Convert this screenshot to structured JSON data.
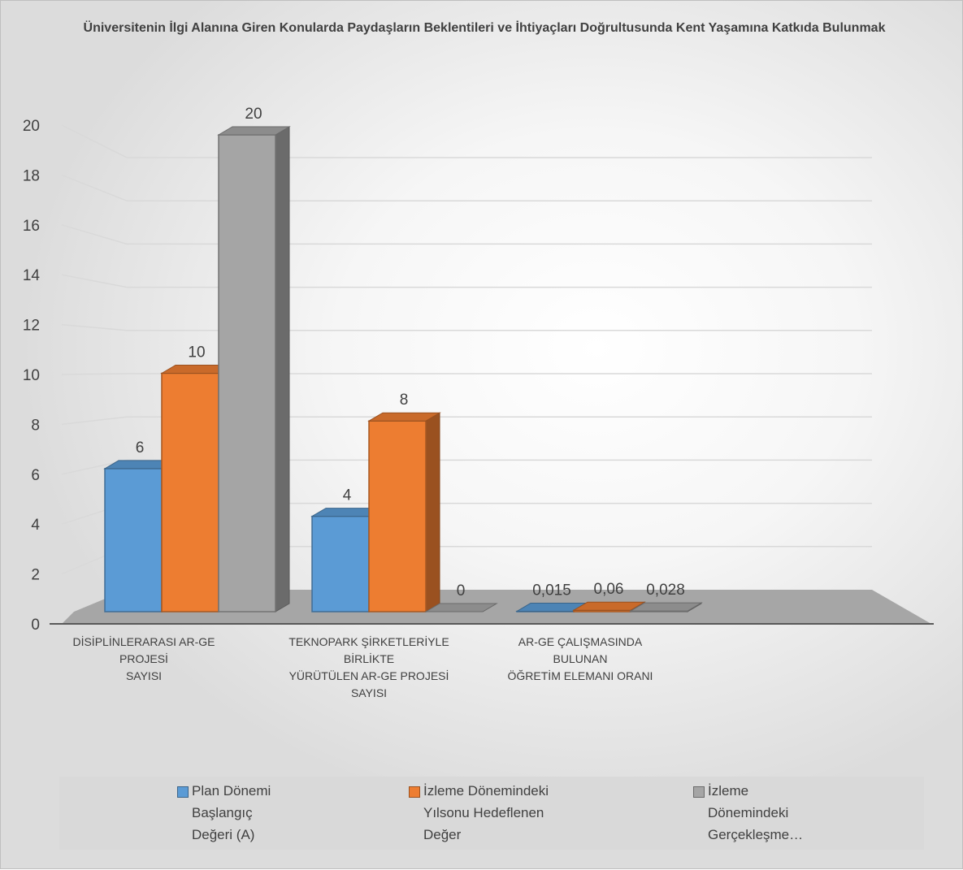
{
  "chart_data": {
    "type": "bar",
    "title": "Üniversitenin İlgi Alanına Giren Konularda Paydaşların Beklentileri ve İhtiyaçları Doğrultusunda Kent Yaşamına Katkıda Bulunmak",
    "categories": [
      "DİSİPLİNLERARASI AR-GE\nPROJESİ\nSAYISI",
      "TEKNOPARK ŞİRKETLERİYLE\nBİRLİKTE\nYÜRÜTÜLEN AR-GE PROJESİ\nSAYISI",
      "AR-GE ÇALIŞMASINDA\nBULUNAN\nÖĞRETİM ELEMANI ORANI"
    ],
    "series": [
      {
        "name": "Plan Dönemi\nBaşlangıç\nDeğeri (A)",
        "values": [
          6,
          4,
          0.015
        ],
        "labels": [
          "6",
          "4",
          "0,015"
        ],
        "color": "#5b9bd5"
      },
      {
        "name": "İzleme Dönemindeki\nYılsonu Hedeflenen\nDeğer",
        "values": [
          10,
          8,
          0.06
        ],
        "labels": [
          "10",
          "8",
          "0,06"
        ],
        "color": "#ed7d31"
      },
      {
        "name": "İzleme\nDönemindeki\nGerçekleşme…",
        "values": [
          20,
          0,
          0.028
        ],
        "labels": [
          "20",
          "0",
          "0,028"
        ],
        "color": "#a5a5a5"
      }
    ],
    "ylim": [
      0,
      20
    ],
    "yticks": [
      "0",
      "2",
      "4",
      "6",
      "8",
      "10",
      "12",
      "14",
      "16",
      "18",
      "20"
    ],
    "grid": true,
    "legend_position": "bottom",
    "style": "3d-column"
  }
}
